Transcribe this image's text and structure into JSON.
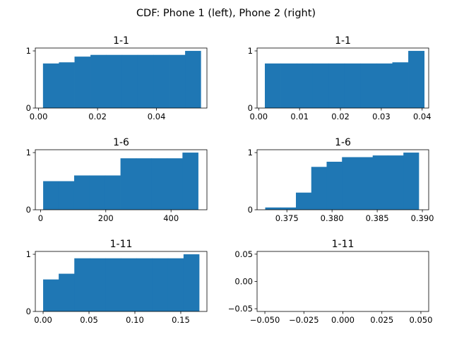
{
  "figure": {
    "suptitle": "CDF: Phone 1 (left), Phone 2 (right)"
  },
  "colors": {
    "bar": "#1f77b4",
    "axis": "#000000",
    "background": "#ffffff"
  },
  "chart_data": [
    {
      "type": "bar",
      "title": "1-1",
      "xlabel": "",
      "ylabel": "",
      "xlim": [
        -0.0011,
        0.0571
      ],
      "ylim": [
        0,
        1.05
      ],
      "xticks": [
        0,
        0.02,
        0.04
      ],
      "xtick_labels": [
        "0.00",
        "0.02",
        "0.04"
      ],
      "yticks": [
        0,
        1
      ],
      "ytick_labels": [
        "0",
        "1"
      ],
      "bins": [
        {
          "x0": 0.0015,
          "x1": 0.0069,
          "y": 0.78
        },
        {
          "x0": 0.0069,
          "x1": 0.0122,
          "y": 0.8
        },
        {
          "x0": 0.0122,
          "x1": 0.0176,
          "y": 0.9
        },
        {
          "x0": 0.0176,
          "x1": 0.0229,
          "y": 0.93
        },
        {
          "x0": 0.0229,
          "x1": 0.0283,
          "y": 0.93
        },
        {
          "x0": 0.0283,
          "x1": 0.0336,
          "y": 0.93
        },
        {
          "x0": 0.0336,
          "x1": 0.039,
          "y": 0.93
        },
        {
          "x0": 0.039,
          "x1": 0.0443,
          "y": 0.93
        },
        {
          "x0": 0.0443,
          "x1": 0.0497,
          "y": 0.93
        },
        {
          "x0": 0.0497,
          "x1": 0.055,
          "y": 1.0
        }
      ]
    },
    {
      "type": "bar",
      "title": "1-1",
      "xlabel": "",
      "ylabel": "",
      "xlim": [
        -0.0004,
        0.0416
      ],
      "ylim": [
        0,
        1.05
      ],
      "xticks": [
        0,
        0.01,
        0.02,
        0.03,
        0.04
      ],
      "xtick_labels": [
        "0.00",
        "0.01",
        "0.02",
        "0.03",
        "0.04"
      ],
      "yticks": [
        0,
        1
      ],
      "ytick_labels": [
        "0",
        "1"
      ],
      "bins": [
        {
          "x0": 0.0015,
          "x1": 0.0054,
          "y": 0.78
        },
        {
          "x0": 0.0054,
          "x1": 0.0093,
          "y": 0.78
        },
        {
          "x0": 0.0093,
          "x1": 0.0132,
          "y": 0.78
        },
        {
          "x0": 0.0132,
          "x1": 0.0171,
          "y": 0.78
        },
        {
          "x0": 0.0171,
          "x1": 0.021,
          "y": 0.78
        },
        {
          "x0": 0.021,
          "x1": 0.0249,
          "y": 0.78
        },
        {
          "x0": 0.0249,
          "x1": 0.0288,
          "y": 0.78
        },
        {
          "x0": 0.0288,
          "x1": 0.0327,
          "y": 0.78
        },
        {
          "x0": 0.0327,
          "x1": 0.0366,
          "y": 0.8
        },
        {
          "x0": 0.0366,
          "x1": 0.0405,
          "y": 1.0
        }
      ]
    },
    {
      "type": "bar",
      "title": "1-6",
      "xlabel": "",
      "ylabel": "",
      "xlim": [
        -16,
        510
      ],
      "ylim": [
        0,
        1.05
      ],
      "xticks": [
        0,
        200,
        400
      ],
      "xtick_labels": [
        "0",
        "200",
        "400"
      ],
      "yticks": [
        0,
        1
      ],
      "ytick_labels": [
        "0",
        "1"
      ],
      "bins": [
        {
          "x0": 8,
          "x1": 55,
          "y": 0.5
        },
        {
          "x0": 55,
          "x1": 103,
          "y": 0.5
        },
        {
          "x0": 103,
          "x1": 150,
          "y": 0.6
        },
        {
          "x0": 150,
          "x1": 198,
          "y": 0.6
        },
        {
          "x0": 198,
          "x1": 245,
          "y": 0.6
        },
        {
          "x0": 245,
          "x1": 293,
          "y": 0.9
        },
        {
          "x0": 293,
          "x1": 340,
          "y": 0.9
        },
        {
          "x0": 340,
          "x1": 388,
          "y": 0.9
        },
        {
          "x0": 388,
          "x1": 435,
          "y": 0.9
        },
        {
          "x0": 435,
          "x1": 483,
          "y": 1.0
        }
      ]
    },
    {
      "type": "bar",
      "title": "1-6",
      "xlabel": "",
      "ylabel": "",
      "xlim": [
        0.3717,
        0.3907
      ],
      "ylim": [
        0,
        1.05
      ],
      "xticks": [
        0.375,
        0.38,
        0.385,
        0.39
      ],
      "xtick_labels": [
        "0.375",
        "0.380",
        "0.385",
        "0.390"
      ],
      "yticks": [
        0,
        1
      ],
      "ytick_labels": [
        "0",
        "1"
      ],
      "bins": [
        {
          "x0": 0.3726,
          "x1": 0.3743,
          "y": 0.04
        },
        {
          "x0": 0.3743,
          "x1": 0.376,
          "y": 0.04
        },
        {
          "x0": 0.376,
          "x1": 0.3777,
          "y": 0.3
        },
        {
          "x0": 0.3777,
          "x1": 0.3794,
          "y": 0.75
        },
        {
          "x0": 0.3794,
          "x1": 0.3811,
          "y": 0.84
        },
        {
          "x0": 0.3811,
          "x1": 0.3828,
          "y": 0.92
        },
        {
          "x0": 0.3828,
          "x1": 0.3845,
          "y": 0.92
        },
        {
          "x0": 0.3845,
          "x1": 0.3862,
          "y": 0.95
        },
        {
          "x0": 0.3862,
          "x1": 0.3879,
          "y": 0.95
        },
        {
          "x0": 0.3879,
          "x1": 0.3896,
          "y": 1.0
        }
      ]
    },
    {
      "type": "bar",
      "title": "1-11",
      "xlabel": "",
      "ylabel": "",
      "xlim": [
        -0.0085,
        0.1785
      ],
      "ylim": [
        0,
        1.05
      ],
      "xticks": [
        0,
        0.05,
        0.1,
        0.15
      ],
      "xtick_labels": [
        "0.00",
        "0.05",
        "0.10",
        "0.15"
      ],
      "yticks": [
        0,
        1
      ],
      "ytick_labels": [
        "0",
        "1"
      ],
      "bins": [
        {
          "x0": 0.0,
          "x1": 0.017,
          "y": 0.56
        },
        {
          "x0": 0.017,
          "x1": 0.034,
          "y": 0.66
        },
        {
          "x0": 0.034,
          "x1": 0.051,
          "y": 0.93
        },
        {
          "x0": 0.051,
          "x1": 0.068,
          "y": 0.93
        },
        {
          "x0": 0.068,
          "x1": 0.085,
          "y": 0.93
        },
        {
          "x0": 0.085,
          "x1": 0.102,
          "y": 0.93
        },
        {
          "x0": 0.102,
          "x1": 0.119,
          "y": 0.93
        },
        {
          "x0": 0.119,
          "x1": 0.136,
          "y": 0.93
        },
        {
          "x0": 0.136,
          "x1": 0.153,
          "y": 0.93
        },
        {
          "x0": 0.153,
          "x1": 0.17,
          "y": 1.0
        }
      ]
    },
    {
      "type": "bar",
      "title": "1-11",
      "xlabel": "",
      "ylabel": "",
      "xlim": [
        -0.055,
        0.055
      ],
      "ylim": [
        -0.055,
        0.055
      ],
      "xticks": [
        -0.05,
        -0.025,
        0,
        0.025,
        0.05
      ],
      "xtick_labels": [
        "−0.050",
        "−0.025",
        "0.000",
        "0.025",
        "0.050"
      ],
      "yticks": [
        -0.05,
        0,
        0.05
      ],
      "ytick_labels": [
        "−0.05",
        "0.00",
        "0.05"
      ],
      "bins": []
    }
  ]
}
